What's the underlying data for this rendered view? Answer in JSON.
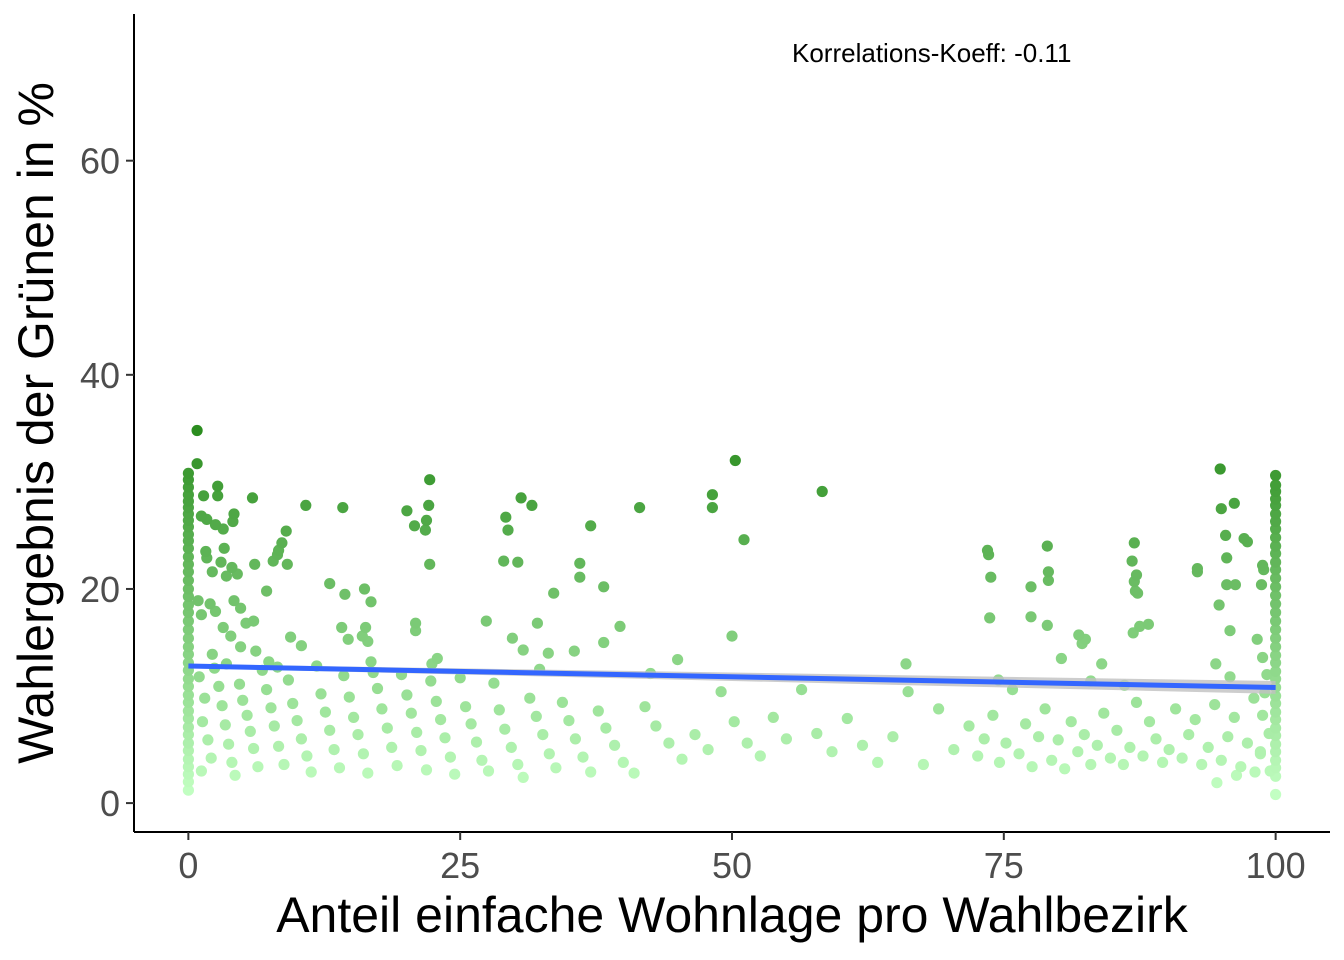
{
  "chart_data": {
    "type": "scatter",
    "title": "",
    "xlabel": "Anteil einfache Wohnlage pro Wahlbezirk",
    "ylabel": "Wahlergebnis der Grünen in %",
    "xlim": [
      -5,
      105
    ],
    "ylim": [
      -2.7,
      73.7
    ],
    "x_ticks": [
      0,
      25,
      50,
      75,
      100
    ],
    "y_ticks": [
      0,
      20,
      40,
      60
    ],
    "x_tick_labels": [
      "0",
      "25",
      "50",
      "75",
      "100"
    ],
    "y_tick_labels": [
      "0",
      "20",
      "40",
      "60"
    ],
    "grid": false,
    "annotation": "Korrelations-Koeff: -0.11",
    "color_scale": {
      "low": "#c2ffc2",
      "high": "#2a8c1e",
      "min": 1,
      "max": 35
    },
    "regression": {
      "x": [
        0,
        100
      ],
      "y": [
        12.8,
        10.8
      ],
      "color": "#3366ff",
      "ci_color": "#c0c0c0",
      "ci_halfwidth": 0.6
    },
    "points": [
      [
        0.8,
        34.8
      ],
      [
        0.8,
        31.7
      ],
      [
        0,
        30.8
      ],
      [
        0,
        30.2
      ],
      [
        0,
        29.5
      ],
      [
        0,
        28.8
      ],
      [
        0,
        28.2
      ],
      [
        0,
        27.6
      ],
      [
        0,
        27.0
      ],
      [
        0,
        26.4
      ],
      [
        0,
        25.8
      ],
      [
        0,
        25.1
      ],
      [
        0,
        24.5
      ],
      [
        0,
        23.8
      ],
      [
        0,
        23.0
      ],
      [
        0,
        22.3
      ],
      [
        0,
        21.6
      ],
      [
        0,
        20.8
      ],
      [
        0,
        20.0
      ],
      [
        0,
        19.3
      ],
      [
        0,
        18.5
      ],
      [
        0,
        17.8
      ],
      [
        0,
        17.0
      ],
      [
        0,
        16.2
      ],
      [
        0,
        15.4
      ],
      [
        0,
        14.6
      ],
      [
        0,
        13.9
      ],
      [
        0,
        13.1
      ],
      [
        0,
        12.4
      ],
      [
        0,
        11.6
      ],
      [
        0,
        10.9
      ],
      [
        0,
        10.1
      ],
      [
        0,
        9.4
      ],
      [
        0,
        8.6
      ],
      [
        0,
        7.9
      ],
      [
        0,
        7.1
      ],
      [
        0,
        6.4
      ],
      [
        0,
        5.6
      ],
      [
        0,
        4.9
      ],
      [
        0,
        4.1
      ],
      [
        0,
        3.4
      ],
      [
        0,
        2.7
      ],
      [
        0,
        2.0
      ],
      [
        0,
        1.2
      ],
      [
        1.4,
        28.7
      ],
      [
        2.7,
        29.6
      ],
      [
        2.7,
        28.7
      ],
      [
        1.2,
        26.8
      ],
      [
        1.7,
        26.5
      ],
      [
        2.5,
        26.0
      ],
      [
        3.2,
        25.6
      ],
      [
        4.2,
        27.0
      ],
      [
        4.1,
        26.3
      ],
      [
        5.9,
        28.5
      ],
      [
        1.6,
        23.5
      ],
      [
        1.7,
        22.9
      ],
      [
        3.3,
        23.8
      ],
      [
        4.0,
        22.0
      ],
      [
        3.0,
        22.5
      ],
      [
        3.5,
        21.2
      ],
      [
        2.2,
        21.6
      ],
      [
        4.5,
        21.4
      ],
      [
        6.1,
        22.3
      ],
      [
        7.2,
        19.8
      ],
      [
        0.9,
        18.9
      ],
      [
        2.0,
        18.6
      ],
      [
        1.2,
        17.6
      ],
      [
        2.5,
        17.9
      ],
      [
        4.2,
        18.9
      ],
      [
        4.8,
        18.2
      ],
      [
        5.3,
        16.8
      ],
      [
        6.0,
        17.0
      ],
      [
        3.2,
        16.4
      ],
      [
        3.9,
        15.6
      ],
      [
        4.8,
        14.6
      ],
      [
        2.2,
        13.9
      ],
      [
        3.5,
        13.0
      ],
      [
        6.2,
        14.2
      ],
      [
        7.4,
        13.2
      ],
      [
        8.2,
        12.7
      ],
      [
        7.8,
        22.6
      ],
      [
        8.3,
        23.6
      ],
      [
        8.6,
        24.3
      ],
      [
        8.2,
        23.2
      ],
      [
        9.1,
        22.3
      ],
      [
        9.0,
        25.4
      ],
      [
        10.8,
        27.8
      ],
      [
        9.4,
        15.5
      ],
      [
        10.4,
        14.7
      ],
      [
        13.0,
        20.5
      ],
      [
        14.2,
        27.6
      ],
      [
        14.4,
        19.5
      ],
      [
        14.1,
        16.4
      ],
      [
        14.7,
        15.3
      ],
      [
        16.2,
        20.0
      ],
      [
        16.8,
        18.8
      ],
      [
        16.0,
        15.6
      ],
      [
        16.3,
        16.4
      ],
      [
        16.5,
        15.1
      ],
      [
        16.8,
        13.2
      ],
      [
        20.1,
        27.3
      ],
      [
        20.8,
        25.9
      ],
      [
        21.8,
        25.5
      ],
      [
        21.9,
        26.4
      ],
      [
        22.1,
        27.8
      ],
      [
        22.2,
        30.2
      ],
      [
        22.2,
        22.3
      ],
      [
        20.9,
        16.8
      ],
      [
        20.9,
        16.1
      ],
      [
        22.4,
        13.0
      ],
      [
        22.9,
        13.5
      ],
      [
        27.4,
        17.0
      ],
      [
        29.2,
        26.7
      ],
      [
        29.4,
        25.5
      ],
      [
        29.0,
        22.6
      ],
      [
        30.6,
        28.5
      ],
      [
        30.3,
        22.5
      ],
      [
        31.6,
        27.8
      ],
      [
        29.8,
        15.4
      ],
      [
        30.8,
        14.3
      ],
      [
        32.1,
        16.8
      ],
      [
        32.3,
        12.5
      ],
      [
        33.6,
        19.6
      ],
      [
        33.1,
        14.0
      ],
      [
        35.5,
        14.2
      ],
      [
        36.0,
        22.4
      ],
      [
        36.0,
        21.1
      ],
      [
        37.0,
        25.9
      ],
      [
        38.2,
        20.2
      ],
      [
        38.2,
        15.0
      ],
      [
        39.7,
        16.5
      ],
      [
        41.5,
        27.6
      ],
      [
        42.5,
        12.1
      ],
      [
        45.0,
        13.4
      ],
      [
        48.2,
        28.8
      ],
      [
        48.2,
        27.6
      ],
      [
        50.3,
        32.0
      ],
      [
        51.1,
        24.6
      ],
      [
        50.0,
        15.6
      ],
      [
        58.3,
        29.1
      ],
      [
        66.0,
        13.0
      ],
      [
        73.5,
        23.6
      ],
      [
        73.6,
        23.2
      ],
      [
        73.8,
        21.1
      ],
      [
        73.7,
        17.3
      ],
      [
        74.5,
        11.5
      ],
      [
        77.5,
        20.2
      ],
      [
        77.5,
        17.4
      ],
      [
        79.0,
        24.0
      ],
      [
        79.1,
        21.6
      ],
      [
        79.1,
        20.8
      ],
      [
        79.0,
        16.6
      ],
      [
        80.3,
        13.5
      ],
      [
        81.9,
        15.7
      ],
      [
        82.2,
        14.9
      ],
      [
        82.5,
        15.3
      ],
      [
        83.0,
        11.4
      ],
      [
        84.0,
        13.0
      ],
      [
        87.0,
        24.3
      ],
      [
        86.8,
        22.6
      ],
      [
        87.2,
        21.3
      ],
      [
        87.0,
        20.7
      ],
      [
        87.1,
        19.8
      ],
      [
        87.3,
        19.6
      ],
      [
        87.5,
        16.5
      ],
      [
        88.3,
        16.7
      ],
      [
        86.9,
        15.9
      ],
      [
        86.1,
        11.0
      ],
      [
        92.8,
        21.9
      ],
      [
        92.8,
        21.6
      ],
      [
        94.9,
        31.2
      ],
      [
        94.8,
        18.5
      ],
      [
        95.0,
        27.5
      ],
      [
        95.4,
        25.0
      ],
      [
        95.5,
        22.9
      ],
      [
        95.5,
        20.4
      ],
      [
        95.8,
        16.1
      ],
      [
        96.2,
        28.0
      ],
      [
        96.3,
        20.4
      ],
      [
        97.1,
        24.7
      ],
      [
        97.4,
        24.4
      ],
      [
        98.3,
        15.3
      ],
      [
        98.8,
        13.6
      ],
      [
        98.7,
        20.4
      ],
      [
        98.9,
        21.8
      ],
      [
        98.8,
        22.2
      ],
      [
        94.5,
        13.0
      ],
      [
        95.8,
        11.8
      ],
      [
        100,
        30.6
      ],
      [
        100,
        29.7
      ],
      [
        100,
        29.1
      ],
      [
        100,
        28.4
      ],
      [
        100,
        27.8
      ],
      [
        100,
        27.0
      ],
      [
        100,
        26.3
      ],
      [
        100,
        25.6
      ],
      [
        100,
        24.8
      ],
      [
        100,
        24.0
      ],
      [
        100,
        23.3
      ],
      [
        100,
        22.5
      ],
      [
        100,
        21.8
      ],
      [
        100,
        21.0
      ],
      [
        100,
        20.2
      ],
      [
        100,
        19.4
      ],
      [
        100,
        18.6
      ],
      [
        100,
        17.8
      ],
      [
        100,
        17.0
      ],
      [
        100,
        16.2
      ],
      [
        100,
        15.4
      ],
      [
        100,
        14.6
      ],
      [
        100,
        13.8
      ],
      [
        100,
        13.1
      ],
      [
        100,
        12.3
      ],
      [
        100,
        11.6
      ],
      [
        100,
        10.8
      ],
      [
        100,
        10.0
      ],
      [
        100,
        9.3
      ],
      [
        100,
        8.5
      ],
      [
        100,
        7.8
      ],
      [
        100,
        7.0
      ],
      [
        100,
        6.3
      ],
      [
        100,
        5.5
      ],
      [
        100,
        4.8
      ],
      [
        100,
        4.0
      ],
      [
        100,
        3.3
      ],
      [
        100,
        2.5
      ],
      [
        100,
        0.8
      ],
      [
        99.2,
        12.0
      ],
      [
        99.0,
        10.3
      ],
      [
        98.8,
        8.2
      ],
      [
        99.4,
        6.5
      ],
      [
        98.6,
        4.8
      ],
      [
        99.5,
        3.0
      ],
      [
        1.0,
        11.8
      ],
      [
        1.5,
        9.8
      ],
      [
        1.3,
        7.6
      ],
      [
        1.8,
        5.9
      ],
      [
        2.1,
        4.2
      ],
      [
        1.2,
        3.0
      ],
      [
        2.4,
        12.6
      ],
      [
        2.8,
        10.9
      ],
      [
        3.1,
        9.1
      ],
      [
        3.4,
        7.3
      ],
      [
        3.7,
        5.5
      ],
      [
        4.0,
        3.8
      ],
      [
        4.3,
        2.6
      ],
      [
        4.7,
        11.1
      ],
      [
        5.0,
        9.6
      ],
      [
        5.4,
        8.2
      ],
      [
        5.7,
        6.7
      ],
      [
        6.0,
        5.1
      ],
      [
        6.4,
        3.4
      ],
      [
        6.8,
        12.4
      ],
      [
        7.2,
        10.6
      ],
      [
        7.6,
        8.9
      ],
      [
        7.9,
        7.2
      ],
      [
        8.3,
        5.3
      ],
      [
        8.8,
        3.6
      ],
      [
        9.2,
        11.5
      ],
      [
        9.6,
        9.3
      ],
      [
        10.0,
        7.7
      ],
      [
        10.4,
        6.0
      ],
      [
        10.9,
        4.4
      ],
      [
        11.3,
        2.9
      ],
      [
        11.8,
        12.8
      ],
      [
        12.2,
        10.2
      ],
      [
        12.6,
        8.5
      ],
      [
        13.0,
        6.8
      ],
      [
        13.4,
        5.0
      ],
      [
        13.9,
        3.3
      ],
      [
        14.3,
        11.9
      ],
      [
        14.8,
        9.9
      ],
      [
        15.2,
        8.0
      ],
      [
        15.6,
        6.4
      ],
      [
        16.1,
        4.6
      ],
      [
        16.5,
        2.8
      ],
      [
        17.0,
        12.2
      ],
      [
        17.4,
        10.7
      ],
      [
        17.8,
        8.8
      ],
      [
        18.3,
        7.0
      ],
      [
        18.7,
        5.2
      ],
      [
        19.2,
        3.5
      ],
      [
        19.6,
        12.0
      ],
      [
        20.1,
        10.1
      ],
      [
        20.5,
        8.4
      ],
      [
        21.0,
        6.6
      ],
      [
        21.4,
        4.9
      ],
      [
        21.9,
        3.1
      ],
      [
        22.3,
        11.4
      ],
      [
        22.8,
        9.5
      ],
      [
        23.2,
        7.8
      ],
      [
        23.6,
        6.1
      ],
      [
        24.1,
        4.3
      ],
      [
        24.5,
        2.7
      ],
      [
        25.0,
        11.7
      ],
      [
        25.5,
        9.0
      ],
      [
        26.0,
        7.4
      ],
      [
        26.5,
        5.7
      ],
      [
        27.0,
        4.0
      ],
      [
        27.6,
        3.0
      ],
      [
        28.1,
        11.2
      ],
      [
        28.6,
        8.7
      ],
      [
        29.1,
        6.9
      ],
      [
        29.7,
        5.2
      ],
      [
        30.3,
        3.6
      ],
      [
        30.8,
        2.4
      ],
      [
        31.4,
        9.8
      ],
      [
        32.0,
        8.1
      ],
      [
        32.6,
        6.4
      ],
      [
        33.2,
        4.6
      ],
      [
        33.8,
        3.3
      ],
      [
        34.4,
        9.4
      ],
      [
        35.0,
        7.7
      ],
      [
        35.6,
        6.0
      ],
      [
        36.3,
        4.3
      ],
      [
        37.0,
        2.9
      ],
      [
        37.7,
        8.6
      ],
      [
        38.4,
        7.0
      ],
      [
        39.2,
        5.4
      ],
      [
        40.0,
        3.8
      ],
      [
        41.0,
        2.8
      ],
      [
        42.0,
        9.0
      ],
      [
        43.0,
        7.2
      ],
      [
        44.2,
        5.6
      ],
      [
        45.4,
        4.1
      ],
      [
        46.6,
        6.4
      ],
      [
        47.8,
        5.0
      ],
      [
        49.0,
        10.4
      ],
      [
        50.2,
        7.6
      ],
      [
        51.4,
        5.6
      ],
      [
        52.6,
        4.4
      ],
      [
        53.8,
        8.0
      ],
      [
        55.0,
        6.0
      ],
      [
        56.4,
        10.6
      ],
      [
        57.8,
        6.5
      ],
      [
        59.2,
        4.8
      ],
      [
        60.6,
        7.9
      ],
      [
        62.0,
        5.4
      ],
      [
        63.4,
        3.8
      ],
      [
        64.8,
        6.2
      ],
      [
        66.2,
        10.4
      ],
      [
        67.6,
        3.6
      ],
      [
        69.0,
        8.8
      ],
      [
        70.4,
        5.0
      ],
      [
        71.8,
        7.2
      ],
      [
        72.6,
        4.4
      ],
      [
        73.2,
        6.0
      ],
      [
        74.0,
        8.2
      ],
      [
        74.6,
        3.8
      ],
      [
        75.2,
        5.6
      ],
      [
        75.8,
        10.6
      ],
      [
        76.4,
        4.6
      ],
      [
        77.0,
        7.4
      ],
      [
        77.6,
        3.4
      ],
      [
        78.2,
        6.2
      ],
      [
        78.8,
        8.8
      ],
      [
        79.4,
        4.0
      ],
      [
        80.0,
        5.9
      ],
      [
        80.6,
        3.2
      ],
      [
        81.2,
        7.6
      ],
      [
        81.8,
        4.8
      ],
      [
        82.4,
        6.4
      ],
      [
        83.0,
        3.6
      ],
      [
        83.6,
        5.4
      ],
      [
        84.2,
        8.4
      ],
      [
        84.8,
        4.2
      ],
      [
        85.4,
        6.8
      ],
      [
        86.0,
        3.6
      ],
      [
        86.6,
        5.2
      ],
      [
        87.2,
        9.4
      ],
      [
        87.8,
        4.4
      ],
      [
        88.4,
        7.6
      ],
      [
        89.0,
        6.0
      ],
      [
        89.6,
        3.8
      ],
      [
        90.2,
        5.0
      ],
      [
        90.8,
        8.8
      ],
      [
        91.4,
        4.2
      ],
      [
        92.0,
        6.4
      ],
      [
        92.6,
        7.8
      ],
      [
        93.2,
        3.6
      ],
      [
        93.8,
        5.2
      ],
      [
        94.4,
        9.2
      ],
      [
        95.0,
        4.0
      ],
      [
        95.6,
        6.2
      ],
      [
        96.2,
        8.0
      ],
      [
        96.8,
        3.4
      ],
      [
        97.4,
        5.6
      ],
      [
        98.0,
        9.8
      ],
      [
        98.6,
        4.6
      ],
      [
        98.1,
        2.9
      ],
      [
        96.4,
        2.6
      ],
      [
        94.6,
        1.9
      ]
    ]
  }
}
